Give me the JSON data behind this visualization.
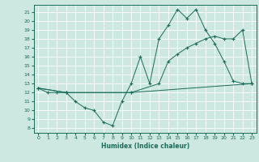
{
  "xlabel": "Humidex (Indice chaleur)",
  "yticks": [
    8,
    9,
    10,
    11,
    12,
    13,
    14,
    15,
    16,
    17,
    18,
    19,
    20,
    21
  ],
  "xticks": [
    0,
    1,
    2,
    3,
    4,
    5,
    6,
    7,
    8,
    9,
    10,
    11,
    12,
    13,
    14,
    15,
    16,
    17,
    18,
    19,
    20,
    21,
    22,
    23
  ],
  "xlim": [
    -0.5,
    23.5
  ],
  "ylim": [
    7.5,
    21.8
  ],
  "bg_color": "#cce8e0",
  "line_color": "#1a6b5a",
  "grid_color": "#b0d8ce",
  "line1_x": [
    0,
    1,
    2,
    3,
    4,
    5,
    6,
    7,
    8,
    9,
    10,
    11,
    12,
    13,
    14,
    15,
    16,
    17,
    18,
    19,
    20,
    21,
    22,
    23
  ],
  "line1_y": [
    12.5,
    12.0,
    12.0,
    12.0,
    11.0,
    10.3,
    10.0,
    8.7,
    8.3,
    11.0,
    13.0,
    16.0,
    13.0,
    18.0,
    19.5,
    21.3,
    20.3,
    21.3,
    19.0,
    17.5,
    15.5,
    13.3,
    13.0,
    13.0
  ],
  "line2_x": [
    0,
    3,
    10,
    13,
    14,
    15,
    16,
    17,
    18,
    19,
    20,
    21,
    22,
    23
  ],
  "line2_y": [
    12.5,
    12.0,
    12.0,
    13.0,
    15.5,
    16.3,
    17.0,
    17.5,
    18.0,
    18.3,
    18.0,
    18.0,
    19.0,
    13.0
  ],
  "line3_x": [
    0,
    3,
    10,
    23
  ],
  "line3_y": [
    12.5,
    12.0,
    12.0,
    13.0
  ]
}
